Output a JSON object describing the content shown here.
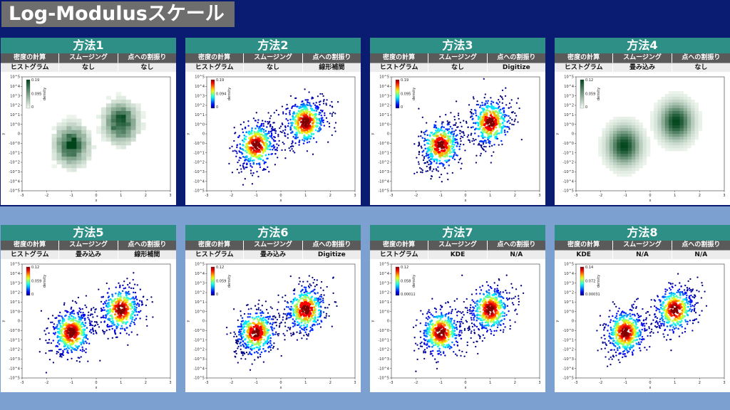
{
  "page_title": "Log-Modulusスケール",
  "header_labels": [
    "密度の計算",
    "スムージング",
    "点への割振り"
  ],
  "panels": [
    {
      "title": "方法1",
      "values": [
        "ヒストグラム",
        "なし",
        "なし"
      ],
      "chart_data": {
        "type": "heatmap",
        "colormap": "greens",
        "cbar_max": "0.19",
        "cbar_mid": "0.095",
        "cbar_min": "0",
        "cbar_label": "density",
        "xlabel": "x",
        "ylabel": "y",
        "xlim": [
          -3,
          3
        ],
        "ylim": [
          -5,
          5
        ]
      }
    },
    {
      "title": "方法2",
      "values": [
        "ヒストグラム",
        "なし",
        "線形補間"
      ],
      "chart_data": {
        "type": "scatter",
        "colormap": "jet",
        "cbar_max": "0.19",
        "cbar_mid": "0.094",
        "cbar_min": "0",
        "cbar_label": "density",
        "xlabel": "x",
        "ylabel": "y",
        "xlim": [
          -3,
          3
        ],
        "ylim": [
          -5,
          5
        ]
      }
    },
    {
      "title": "方法3",
      "values": [
        "ヒストグラム",
        "なし",
        "Digitize"
      ],
      "chart_data": {
        "type": "scatter",
        "colormap": "jet",
        "cbar_max": "0.19",
        "cbar_mid": "0.095",
        "cbar_min": "0",
        "cbar_label": "density",
        "xlabel": "x",
        "ylabel": "y",
        "xlim": [
          -3,
          3
        ],
        "ylim": [
          -5,
          5
        ]
      }
    },
    {
      "title": "方法4",
      "values": [
        "ヒストグラム",
        "畳み込み",
        "なし"
      ],
      "chart_data": {
        "type": "heatmap",
        "colormap": "greens",
        "cbar_max": "0.12",
        "cbar_mid": "0.059",
        "cbar_min": "0",
        "cbar_label": "density",
        "xlabel": "x",
        "ylabel": "y",
        "xlim": [
          -3,
          3
        ],
        "ylim": [
          -5,
          5
        ]
      }
    },
    {
      "title": "方法5",
      "values": [
        "ヒストグラム",
        "畳み込み",
        "線形補間"
      ],
      "chart_data": {
        "type": "scatter",
        "colormap": "jet",
        "cbar_max": "0.12",
        "cbar_mid": "0.059",
        "cbar_min": "0",
        "cbar_label": "density",
        "xlabel": "x",
        "ylabel": "y",
        "xlim": [
          -3,
          3
        ],
        "ylim": [
          -5,
          5
        ]
      }
    },
    {
      "title": "方法6",
      "values": [
        "ヒストグラム",
        "畳み込み",
        "Digitize"
      ],
      "chart_data": {
        "type": "scatter",
        "colormap": "jet",
        "cbar_max": "0.12",
        "cbar_mid": "0.059",
        "cbar_min": "0",
        "cbar_label": "density",
        "xlabel": "x",
        "ylabel": "y",
        "xlim": [
          -3,
          3
        ],
        "ylim": [
          -5,
          5
        ]
      }
    },
    {
      "title": "方法7",
      "values": [
        "ヒストグラム",
        "KDE",
        "N/A"
      ],
      "chart_data": {
        "type": "scatter",
        "colormap": "jet",
        "cbar_max": "0.12",
        "cbar_mid": "0.058",
        "cbar_min": "0.00011",
        "cbar_label": "density",
        "xlabel": "x",
        "ylabel": "y",
        "xlim": [
          -3,
          3
        ],
        "ylim": [
          -5,
          5
        ]
      }
    },
    {
      "title": "方法8",
      "values": [
        "KDE",
        "N/A",
        "N/A"
      ],
      "chart_data": {
        "type": "scatter",
        "colormap": "jet",
        "cbar_max": "0.14",
        "cbar_mid": "0.072",
        "cbar_min": "0.00031",
        "cbar_label": "density",
        "xlabel": "x",
        "ylabel": "y",
        "xlim": [
          -3,
          3
        ],
        "ylim": [
          -5,
          5
        ]
      }
    }
  ],
  "x_ticks": [
    "-3",
    "-2",
    "-1",
    "0",
    "1",
    "2",
    "3"
  ],
  "y_ticks": [
    "10^5",
    "10^4",
    "10^3",
    "10^2",
    "10^1",
    "10^0",
    "0",
    "-10^0",
    "-10^1",
    "-10^2",
    "-10^3",
    "-10^4",
    "-10^5"
  ]
}
